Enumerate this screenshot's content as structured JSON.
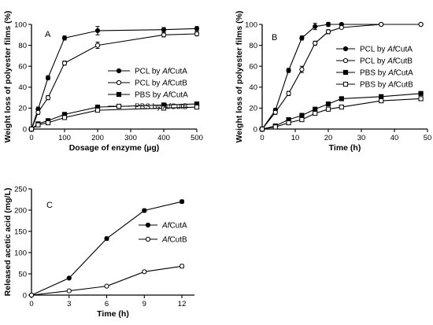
{
  "chart_data": [
    {
      "type": "line",
      "panel_label": "A",
      "xlabel": "Dosage of enzyme (µg)",
      "ylabel": "Weight loss of polyester films (%)",
      "xlim": [
        0,
        500
      ],
      "ylim": [
        0,
        100
      ],
      "xticks": [
        0,
        100,
        200,
        300,
        400,
        500
      ],
      "yticks": [
        0,
        20,
        40,
        60,
        80,
        100
      ],
      "x": [
        0,
        20,
        50,
        100,
        200,
        400,
        500
      ],
      "legend_position": "right",
      "series": [
        {
          "name": "PCL by AfCutA",
          "name_prefix": "PCL by ",
          "name_italic": "Af",
          "name_suffix": "CutA",
          "marker": "circle-filled",
          "values": [
            0,
            19,
            49,
            87,
            94,
            95,
            96
          ],
          "errors": [
            0,
            2,
            2,
            2,
            4,
            2,
            2
          ]
        },
        {
          "name": "PCL by AfCutB",
          "name_prefix": "PCL by ",
          "name_italic": "Af",
          "name_suffix": "CutB",
          "marker": "circle-open",
          "values": [
            0,
            16,
            30,
            63,
            80,
            90,
            91
          ],
          "errors": [
            0,
            2,
            2,
            2,
            3,
            2,
            2
          ]
        },
        {
          "name": "PBS by AfCutA",
          "name_prefix": "PBS by ",
          "name_italic": "Af",
          "name_suffix": "CutA",
          "marker": "square-filled",
          "values": [
            0,
            5,
            8,
            14,
            21,
            23,
            24
          ],
          "errors": [
            0,
            1,
            1,
            1,
            1,
            1,
            1
          ]
        },
        {
          "name": "PBS by AfCutB",
          "name_prefix": "PBS by ",
          "name_italic": "Af",
          "name_suffix": "CutB",
          "marker": "square-open",
          "values": [
            0,
            4,
            6,
            11,
            18,
            20,
            21
          ],
          "errors": [
            0,
            1,
            1,
            1,
            1,
            1,
            1
          ]
        }
      ]
    },
    {
      "type": "line",
      "panel_label": "B",
      "xlabel": "Time (h)",
      "ylabel": "Weight loss of polyester films (%)",
      "xlim": [
        0,
        50
      ],
      "ylim": [
        0,
        100
      ],
      "xticks": [
        0,
        10,
        20,
        30,
        40,
        50
      ],
      "yticks": [
        0,
        20,
        40,
        60,
        80,
        100
      ],
      "x": [
        0,
        4,
        8,
        12,
        16,
        20,
        24,
        36,
        48
      ],
      "legend_position": "right",
      "series": [
        {
          "name": "PCL by AfCutA",
          "name_prefix": "PCL by ",
          "name_italic": "Af",
          "name_suffix": "CutA",
          "marker": "circle-filled",
          "values": [
            0,
            18,
            56,
            87,
            98,
            100,
            100,
            100,
            100
          ],
          "errors": [
            0,
            2,
            2,
            2,
            3,
            2,
            1,
            1,
            1
          ]
        },
        {
          "name": "PCL by AfCutB",
          "name_prefix": "PCL by ",
          "name_italic": "Af",
          "name_suffix": "CutB",
          "marker": "circle-open",
          "values": [
            0,
            16,
            34,
            57,
            82,
            93,
            97,
            100,
            100
          ],
          "errors": [
            0,
            2,
            2,
            3,
            2,
            2,
            1,
            1,
            1
          ]
        },
        {
          "name": "PBS by AfCutA",
          "name_prefix": "PBS by ",
          "name_italic": "Af",
          "name_suffix": "CutA",
          "marker": "square-filled",
          "values": [
            0,
            3,
            9,
            13,
            19,
            24,
            29,
            31,
            34
          ],
          "errors": [
            0,
            1,
            1,
            2,
            1,
            1,
            1,
            1,
            1
          ]
        },
        {
          "name": "PBS by AfCutB",
          "name_prefix": "PBS by ",
          "name_italic": "Af",
          "name_suffix": "CutB",
          "marker": "square-open",
          "values": [
            0,
            2,
            6,
            9,
            15,
            19,
            21,
            27,
            29
          ],
          "errors": [
            0,
            1,
            1,
            1,
            1,
            1,
            1,
            1,
            1
          ]
        }
      ]
    },
    {
      "type": "line",
      "panel_label": "C",
      "xlabel": "Time (h)",
      "ylabel": "Released acetic acid (mg/L)",
      "xlim": [
        0,
        13
      ],
      "ylim": [
        0,
        250
      ],
      "xticks": [
        0,
        3,
        6,
        9,
        12
      ],
      "yticks": [
        0,
        50,
        100,
        150,
        200,
        250
      ],
      "x": [
        0,
        3,
        6,
        9,
        12
      ],
      "legend_position": "right",
      "series": [
        {
          "name": "AfCutA",
          "name_prefix": "",
          "name_italic": "Af",
          "name_suffix": "CutA",
          "marker": "circle-filled",
          "values": [
            0,
            40,
            133,
            199,
            220
          ],
          "errors": [
            0,
            2,
            4,
            4,
            4
          ]
        },
        {
          "name": "AfCutB",
          "name_prefix": "",
          "name_italic": "Af",
          "name_suffix": "CutB",
          "marker": "circle-open",
          "values": [
            0,
            10,
            21,
            55,
            68
          ],
          "errors": [
            0,
            1,
            2,
            3,
            4
          ]
        }
      ]
    }
  ]
}
